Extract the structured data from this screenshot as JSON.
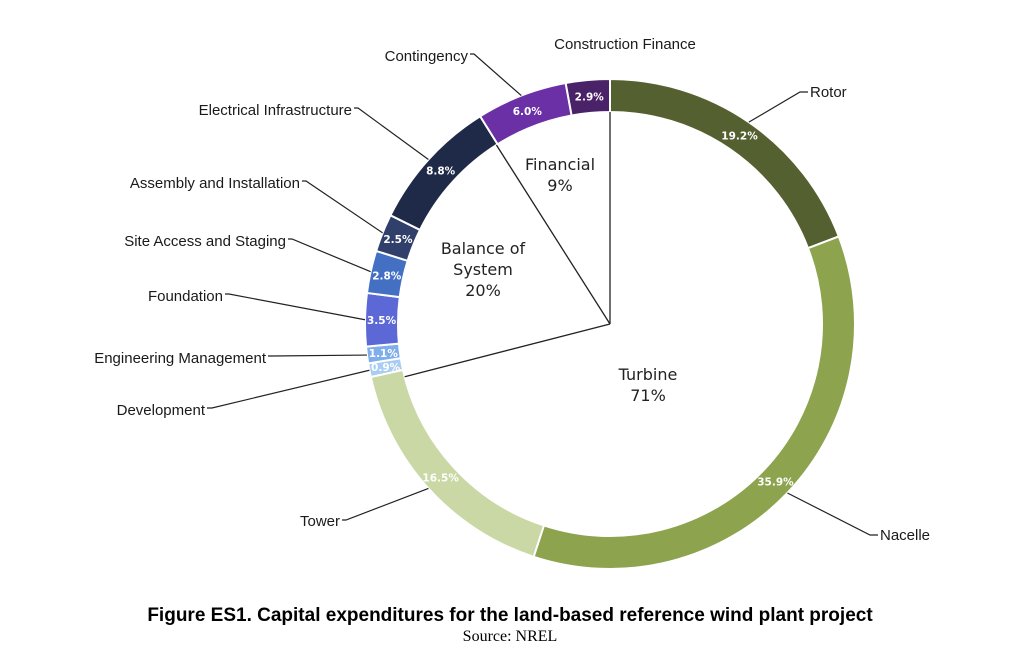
{
  "chart_data": {
    "type": "pie",
    "subtype": "nested-donut",
    "inner": [
      {
        "name": "Turbine",
        "value": 71,
        "label": "71%"
      },
      {
        "name": "Balance of System",
        "value": 20,
        "label": "20%"
      },
      {
        "name": "Financial",
        "value": 9,
        "label": "9%"
      }
    ],
    "outer": [
      {
        "name": "Rotor",
        "value": 19.2,
        "label": "19.2%",
        "group": "Turbine",
        "color": "#556030",
        "text_color": "#ffffff"
      },
      {
        "name": "Nacelle",
        "value": 35.9,
        "label": "35.9%",
        "group": "Turbine",
        "color": "#8da34e",
        "text_color": "#ffffff"
      },
      {
        "name": "Tower",
        "value": 16.5,
        "label": "16.5%",
        "group": "Turbine",
        "color": "#c9d8a4",
        "text_color": "#ffffff"
      },
      {
        "name": "Development",
        "value": 0.9,
        "label": "0.9%",
        "group": "Balance of System",
        "color": "#a9cdf2",
        "text_color": "#ffffff"
      },
      {
        "name": "Engineering Management",
        "value": 1.1,
        "label": "1.1%",
        "group": "Balance of System",
        "color": "#7faeea",
        "text_color": "#ffffff"
      },
      {
        "name": "Foundation",
        "value": 3.5,
        "label": "3.5%",
        "group": "Balance of System",
        "color": "#5b68d6",
        "text_color": "#ffffff"
      },
      {
        "name": "Site Access and Staging",
        "value": 2.8,
        "label": "2.8%",
        "group": "Balance of System",
        "color": "#4470c4",
        "text_color": "#ffffff"
      },
      {
        "name": "Assembly and Installation",
        "value": 2.5,
        "label": "2.5%",
        "group": "Balance of System",
        "color": "#30406a",
        "text_color": "#ffffff"
      },
      {
        "name": "Electrical Infrastructure",
        "value": 8.8,
        "label": "8.8%",
        "group": "Balance of System",
        "color": "#1e2a48",
        "text_color": "#ffffff"
      },
      {
        "name": "Contingency",
        "value": 6.0,
        "label": "6.0%",
        "group": "Financial",
        "color": "#6b2fa6",
        "text_color": "#ffffff"
      },
      {
        "name": "Construction Finance",
        "value": 2.9,
        "label": "2.9%",
        "group": "Financial",
        "color": "#4a2268",
        "text_color": "#ffffff"
      }
    ]
  },
  "caption": {
    "title": "Figure ES1. Capital expenditures for the land-based reference wind plant project",
    "source": "Source: NREL"
  }
}
